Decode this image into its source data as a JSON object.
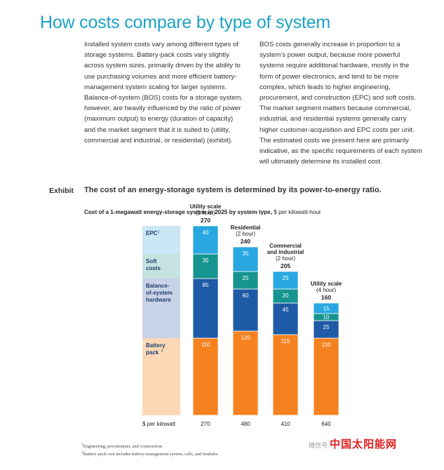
{
  "title": "How costs compare by type of system",
  "paragraphs": {
    "left": "Installed system costs vary among different types of storage systems. Battery-pack costs vary slightly across system sizes, primarily driven by the ability to use purchasing volumes and more efficient battery-management system scaling for larger systems. Balance-of-system (BOS) costs for a storage system, however, are heavily influenced by the ratio of power (maximum output) to energy (duration of capacity) and the market segment that it is suited to (utility, commercial and industrial, or residential) (exhibit).",
    "right": "BOS costs generally increase in proportion to a system's power output, because more powerful systems require additional hardware, mostly in the form of power electronics, and tend to be more complex, which leads to higher engineering, procurement, and construction (EPC) and soft costs. The market segment matters because commercial, industrial, and residential systems generally carry higher customer-acquisition and EPC costs per unit. The estimated costs we present here are primarily indicative, as the specific requirements of each system will ultimately determine its installed cost."
  },
  "exhibit": {
    "label": "Exhibit",
    "title": "The cost of an energy-storage system is determined by its power-to-energy ratio.",
    "subtitle_bold": "Cost of a 1-megawatt energy-storage system in 2025 by system type,",
    "subtitle_unit": " $ per kilowatt-hour"
  },
  "chart_data": {
    "type": "bar",
    "stacked": true,
    "categories": [
      {
        "lines": [
          "Utility scale",
          "(1 hour)"
        ],
        "total": "270",
        "per_kw": "270"
      },
      {
        "lines": [
          "Residential",
          "(2 hour)"
        ],
        "total": "240",
        "per_kw": "480"
      },
      {
        "lines": [
          "Commercial",
          "and industrial",
          "(2 hour)"
        ],
        "total": "205",
        "per_kw": "410"
      },
      {
        "lines": [
          "Utility scale",
          "(4 hour)"
        ],
        "total": "160",
        "per_kw": "640"
      }
    ],
    "series": [
      {
        "name": "Battery pack",
        "sup": "2",
        "color": "#f5821f",
        "band": "#fbd9b6",
        "values": [
          110,
          120,
          115,
          110
        ]
      },
      {
        "name": "Balance-of-system hardware",
        "color": "#1f5aa6",
        "band": "#c9d3e8",
        "values": [
          85,
          60,
          45,
          25
        ]
      },
      {
        "name": "Soft costs",
        "color": "#16948f",
        "band": "#c6e3e1",
        "values": [
          35,
          25,
          20,
          10
        ]
      },
      {
        "name": "EPC",
        "sup": "1",
        "color": "#29a7e0",
        "band": "#cbe6f5",
        "values": [
          40,
          35,
          25,
          15
        ]
      }
    ],
    "legend_lines": [
      [
        "Battery",
        "pack"
      ],
      [
        "Balance-",
        "of-system",
        "hardware"
      ],
      [
        "Soft",
        "costs"
      ],
      [
        "EPC"
      ]
    ],
    "per_kw_label": "$ per kilowatt"
  },
  "footnotes": [
    "Engineering, procurement, and construction.",
    "Battery-pack cost includes battery-management system, cells, and modules."
  ],
  "watermark": "中国太阳能网",
  "watermark_small": "微信号"
}
